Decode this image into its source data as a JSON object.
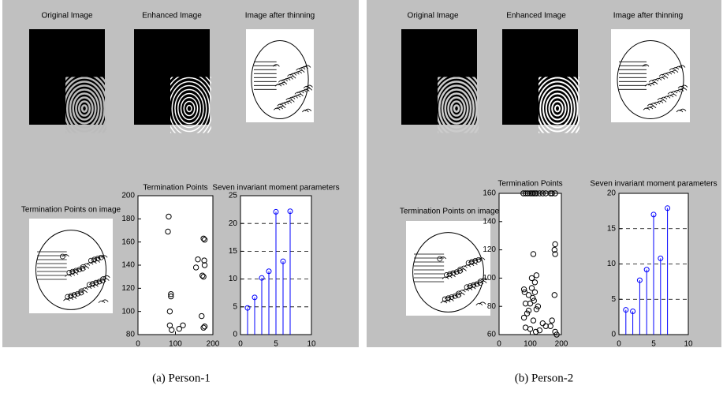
{
  "panels": [
    {
      "caption": "(a) Person-1",
      "image_titles": [
        "Original Image",
        "Enhanced Image",
        "Image after thinning",
        "Termination Points on image"
      ]
    },
    {
      "caption": "(b) Person-2",
      "image_titles": [
        "Original Image",
        "Enhanced Image",
        "Image after thinning",
        "Termination Points on image"
      ]
    }
  ],
  "chart_data": [
    {
      "type": "scatter",
      "title": "Termination Points",
      "color": "#000000",
      "x": [
        82,
        80,
        88,
        88,
        85,
        85,
        90,
        110,
        120,
        155,
        160,
        175,
        178,
        177,
        178,
        172,
        175,
        170,
        175,
        178
      ],
      "y": [
        182,
        169,
        115,
        113,
        100,
        88,
        84,
        85,
        88,
        138,
        145,
        163,
        162,
        144,
        140,
        131,
        130,
        96,
        86,
        87
      ],
      "xlim": [
        0,
        200
      ],
      "xticks": [
        0,
        100,
        200
      ],
      "ylim": [
        80,
        200
      ],
      "yticks": [
        80,
        100,
        120,
        140,
        160,
        180,
        200
      ],
      "grid": false
    },
    {
      "type": "stem",
      "title": "Seven invariant moment parameters",
      "color": "#0000ff",
      "x": [
        1,
        2,
        3,
        4,
        5,
        6,
        7
      ],
      "values": [
        4.8,
        6.7,
        10.2,
        11.4,
        22.1,
        13.2,
        22.2
      ],
      "xlim": [
        0,
        10
      ],
      "xticks": [
        0,
        5,
        10
      ],
      "ylim": [
        0,
        25
      ],
      "yticks": [
        0,
        5,
        10,
        15,
        20,
        25
      ],
      "grid": true
    },
    {
      "type": "scatter",
      "title": "Termination Points",
      "color": "#000000",
      "x": [
        78,
        85,
        92,
        100,
        105,
        110,
        115,
        120,
        130,
        140,
        150,
        165,
        170,
        180,
        180,
        178,
        180,
        110,
        178,
        120,
        105,
        115,
        80,
        82,
        95,
        108,
        112,
        100,
        85,
        125,
        120,
        90,
        80,
        110,
        140,
        170,
        165,
        85,
        100,
        118,
        130,
        180,
        185,
        150,
        95,
        115,
        105
      ],
      "y": [
        160,
        160,
        160,
        160,
        160,
        160,
        160,
        160,
        160,
        160,
        160,
        160,
        160,
        160,
        124,
        120,
        117,
        117,
        88,
        102,
        100,
        97,
        92,
        90,
        88,
        86,
        84,
        82,
        82,
        80,
        78,
        75,
        72,
        70,
        68,
        70,
        66,
        65,
        64,
        62,
        63,
        62,
        60,
        66,
        77,
        90,
        93
      ],
      "xlim": [
        0,
        200
      ],
      "xticks": [
        0,
        100,
        200
      ],
      "ylim": [
        60,
        160
      ],
      "yticks": [
        60,
        80,
        100,
        120,
        140,
        160
      ],
      "grid": false
    },
    {
      "type": "stem",
      "title": "Seven invariant moment parameters",
      "color": "#0000ff",
      "x": [
        1,
        2,
        3,
        4,
        5,
        6,
        7
      ],
      "values": [
        3.5,
        3.3,
        7.7,
        9.2,
        17.0,
        10.8,
        17.9
      ],
      "xlim": [
        0,
        10
      ],
      "xticks": [
        0,
        5,
        10
      ],
      "ylim": [
        0,
        20
      ],
      "yticks": [
        0,
        5,
        10,
        15,
        20
      ],
      "grid": true
    }
  ]
}
